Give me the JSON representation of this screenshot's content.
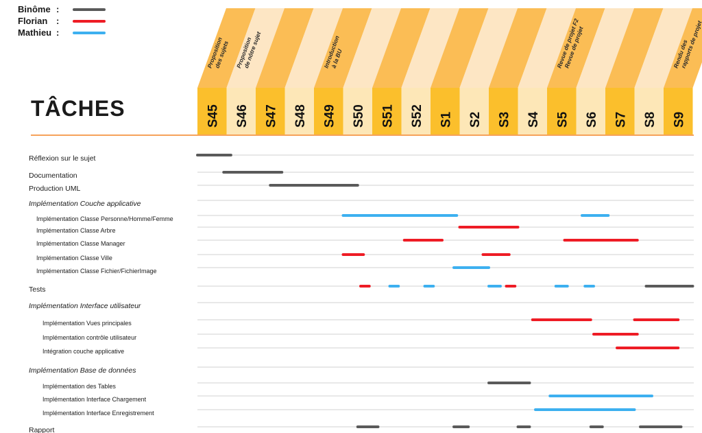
{
  "legend": [
    {
      "name": "Binôme",
      "color": "#5a5a5a"
    },
    {
      "name": "Florian",
      "color": "#ee1c25"
    },
    {
      "name": "Mathieu",
      "color": "#3db0f0"
    }
  ],
  "legend_colon": ":",
  "title": "TÂCHES",
  "colors": {
    "column_dark": "#fbbd55",
    "column_light": "#fde6c4",
    "cell_dark": "#fbbf2c",
    "cell_light": "#fde7b7",
    "row_line": "#d2d2d2",
    "title_rule": "#f6a25a"
  },
  "chart_data": {
    "type": "gantt",
    "title": "TÂCHES",
    "weeks": [
      "S45",
      "S46",
      "S47",
      "S48",
      "S49",
      "S50",
      "S51",
      "S52",
      "S1",
      "S2",
      "S3",
      "S4",
      "S5",
      "S6",
      "S7",
      "S8",
      "S9"
    ],
    "milestones": [
      {
        "week": 0,
        "lines": [
          "Proposition",
          "des sujets"
        ]
      },
      {
        "week": 1,
        "lines": [
          "Proposition",
          "de nôtre sujet"
        ]
      },
      {
        "week": 4,
        "lines": [
          "Introduction",
          "à la BU"
        ]
      },
      {
        "week": 12,
        "lines": [
          "Revue de projet F2",
          "Revue de projet"
        ]
      },
      {
        "week": 16,
        "lines": [
          "Rendu des",
          "rapports de projet"
        ]
      }
    ],
    "tasks": [
      {
        "label": "Réflexion sur le sujet",
        "level": 0,
        "bars": [
          {
            "who": "Binôme",
            "start": 0.0,
            "end": 1.15
          }
        ]
      },
      {
        "label": "Documentation",
        "level": 0,
        "bars": [
          {
            "who": "Binôme",
            "start": 0.9,
            "end": 2.9
          }
        ]
      },
      {
        "label": "Production UML",
        "level": 0,
        "bars": [
          {
            "who": "Binôme",
            "start": 2.5,
            "end": 5.5
          }
        ]
      },
      {
        "label": "Implémentation Couche applicative",
        "level": 0,
        "italic": true,
        "bars": []
      },
      {
        "label": "Implémentation Classe Personne/Homme/Femme",
        "level": 1,
        "bars": [
          {
            "who": "Mathieu",
            "start": 5.0,
            "end": 8.9
          },
          {
            "who": "Mathieu",
            "start": 13.2,
            "end": 14.1
          }
        ]
      },
      {
        "label": "Implémentation Classe Arbre",
        "level": 1,
        "bars": [
          {
            "who": "Florian",
            "start": 9.0,
            "end": 11.0
          }
        ]
      },
      {
        "label": "Implémentation Classe Manager",
        "level": 1,
        "bars": [
          {
            "who": "Florian",
            "start": 7.1,
            "end": 8.4
          },
          {
            "who": "Florian",
            "start": 12.6,
            "end": 15.1
          }
        ]
      },
      {
        "label": "Implémentation Classe Ville",
        "level": 1,
        "bars": [
          {
            "who": "Florian",
            "start": 5.0,
            "end": 5.7
          },
          {
            "who": "Florian",
            "start": 9.8,
            "end": 10.7
          }
        ]
      },
      {
        "label": "Implémentation Classe Fichier/FichierImage",
        "level": 1,
        "bars": [
          {
            "who": "Mathieu",
            "start": 8.8,
            "end": 10.0
          }
        ]
      },
      {
        "label": "Tests",
        "level": 0,
        "bars": [
          {
            "who": "Florian",
            "start": 5.6,
            "end": 5.9
          },
          {
            "who": "Mathieu",
            "start": 6.6,
            "end": 6.9
          },
          {
            "who": "Mathieu",
            "start": 7.8,
            "end": 8.1
          },
          {
            "who": "Mathieu",
            "start": 10.0,
            "end": 10.4
          },
          {
            "who": "Florian",
            "start": 10.6,
            "end": 10.9
          },
          {
            "who": "Mathieu",
            "start": 12.3,
            "end": 12.7
          },
          {
            "who": "Mathieu",
            "start": 13.3,
            "end": 13.6
          },
          {
            "who": "Binôme",
            "start": 15.4,
            "end": 17.0
          }
        ]
      },
      {
        "label": "Implémentation Interface utilisateur",
        "level": 0,
        "italic": true,
        "bars": []
      },
      {
        "label": "Implémentation Vues principales",
        "level": 2,
        "bars": [
          {
            "who": "Florian",
            "start": 11.5,
            "end": 13.5
          },
          {
            "who": "Florian",
            "start": 15.0,
            "end": 16.5
          }
        ]
      },
      {
        "label": "Implémentation contrôle utilisateur",
        "level": 2,
        "bars": [
          {
            "who": "Florian",
            "start": 13.6,
            "end": 15.1
          }
        ]
      },
      {
        "label": "Intégration couche applicative",
        "level": 2,
        "bars": [
          {
            "who": "Florian",
            "start": 14.4,
            "end": 16.5
          }
        ]
      },
      {
        "label": "Implémentation Base de données",
        "level": 0,
        "italic": true,
        "bars": []
      },
      {
        "label": "Implémentation des Tables",
        "level": 2,
        "bars": [
          {
            "who": "Binôme",
            "start": 10.0,
            "end": 11.4
          }
        ]
      },
      {
        "label": "Implémentation Interface Chargement",
        "level": 2,
        "bars": [
          {
            "who": "Mathieu",
            "start": 12.1,
            "end": 15.6
          }
        ]
      },
      {
        "label": "Implémentation Interface Enregistrement",
        "level": 2,
        "bars": [
          {
            "who": "Mathieu",
            "start": 11.6,
            "end": 15.0
          }
        ]
      },
      {
        "label": "Rapport",
        "level": 0,
        "bars": [
          {
            "who": "Binôme",
            "start": 5.5,
            "end": 6.2
          },
          {
            "who": "Binôme",
            "start": 8.8,
            "end": 9.3
          },
          {
            "who": "Binôme",
            "start": 11.0,
            "end": 11.4
          },
          {
            "who": "Binôme",
            "start": 13.5,
            "end": 13.9
          },
          {
            "who": "Binôme",
            "start": 15.2,
            "end": 16.6
          }
        ]
      }
    ]
  }
}
